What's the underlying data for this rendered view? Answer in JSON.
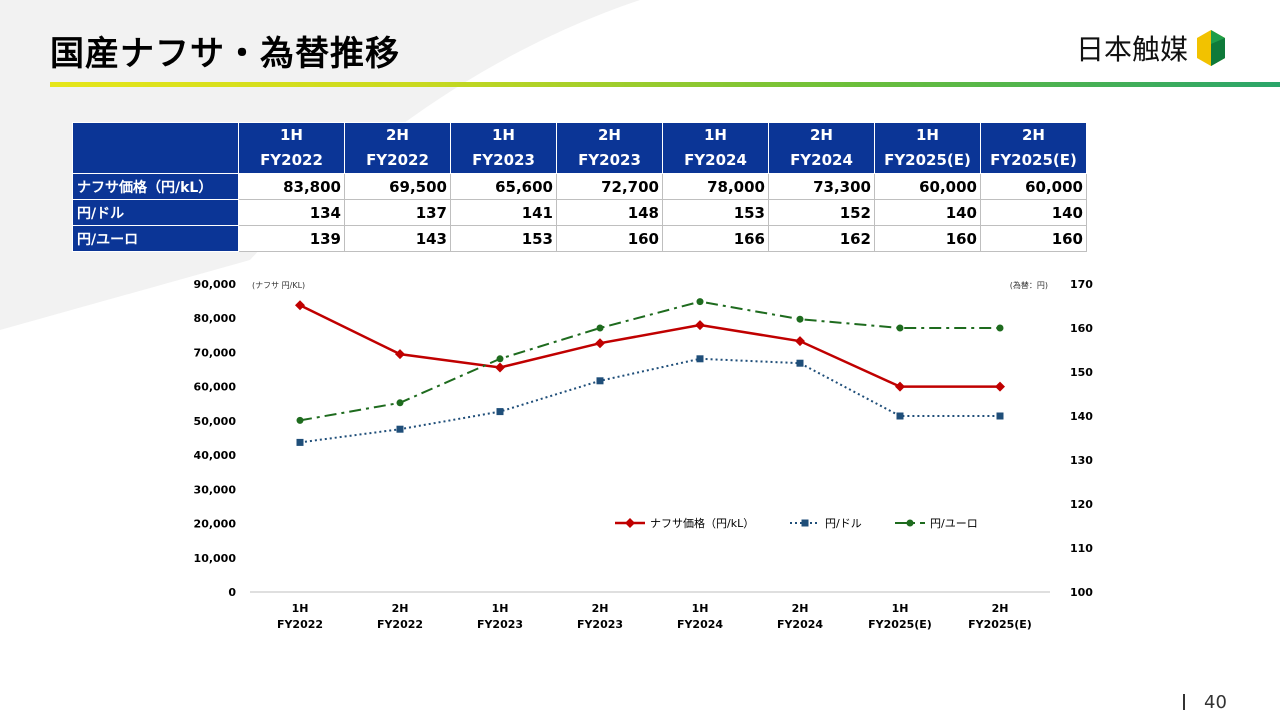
{
  "page": {
    "title": "国産ナフサ・為替推移",
    "logo_text": "日本触媒",
    "page_number": "40"
  },
  "table": {
    "columns": [
      [
        "1H",
        "FY2022"
      ],
      [
        "2H",
        "FY2022"
      ],
      [
        "1H",
        "FY2023"
      ],
      [
        "2H",
        "FY2023"
      ],
      [
        "1H",
        "FY2024"
      ],
      [
        "2H",
        "FY2024"
      ],
      [
        "1H",
        "FY2025(E)"
      ],
      [
        "2H",
        "FY2025(E)"
      ]
    ],
    "rows": [
      {
        "label": "ナフサ価格（円/kL）",
        "values": [
          "83,800",
          "69,500",
          "65,600",
          "72,700",
          "78,000",
          "73,300",
          "60,000",
          "60,000"
        ]
      },
      {
        "label": "円/ドル",
        "values": [
          "134",
          "137",
          "141",
          "148",
          "153",
          "152",
          "140",
          "140"
        ]
      },
      {
        "label": "円/ユーロ",
        "values": [
          "139",
          "143",
          "153",
          "160",
          "166",
          "162",
          "160",
          "160"
        ]
      }
    ]
  },
  "colors": {
    "naphtha": "#c00000",
    "usd": "#1f4e79",
    "eur": "#1e6b1e",
    "header_bg": "#0b3596"
  },
  "chart_data": {
    "type": "line",
    "categories": [
      [
        "1H",
        "FY2022"
      ],
      [
        "2H",
        "FY2022"
      ],
      [
        "1H",
        "FY2023"
      ],
      [
        "2H",
        "FY2023"
      ],
      [
        "1H",
        "FY2024"
      ],
      [
        "2H",
        "FY2024"
      ],
      [
        "1H",
        "FY2025(E)"
      ],
      [
        "2H",
        "FY2025(E)"
      ]
    ],
    "y_left": {
      "label": "(ナフサ 円/KL)",
      "min": 0,
      "max": 90000,
      "ticks": [
        "0",
        "10,000",
        "20,000",
        "30,000",
        "40,000",
        "50,000",
        "60,000",
        "70,000",
        "80,000",
        "90,000"
      ]
    },
    "y_right": {
      "label": "(為替：円)",
      "min": 100,
      "max": 170,
      "ticks": [
        "100",
        "110",
        "120",
        "130",
        "140",
        "150",
        "160",
        "170"
      ]
    },
    "series": [
      {
        "name": "ナフサ価格（円/kL）",
        "axis": "left",
        "marker": "diamond",
        "style": "solid",
        "values": [
          83800,
          69500,
          65600,
          72700,
          78000,
          73300,
          60000,
          60000
        ]
      },
      {
        "name": "円/ドル",
        "axis": "right",
        "marker": "square",
        "style": "dotted",
        "values": [
          134,
          137,
          141,
          148,
          153,
          152,
          140,
          140
        ]
      },
      {
        "name": "円/ユーロ",
        "axis": "right",
        "marker": "circle",
        "style": "dashdot",
        "values": [
          139,
          143,
          153,
          160,
          166,
          162,
          160,
          160
        ]
      }
    ],
    "legend_position": "lower-right",
    "grid": false
  }
}
